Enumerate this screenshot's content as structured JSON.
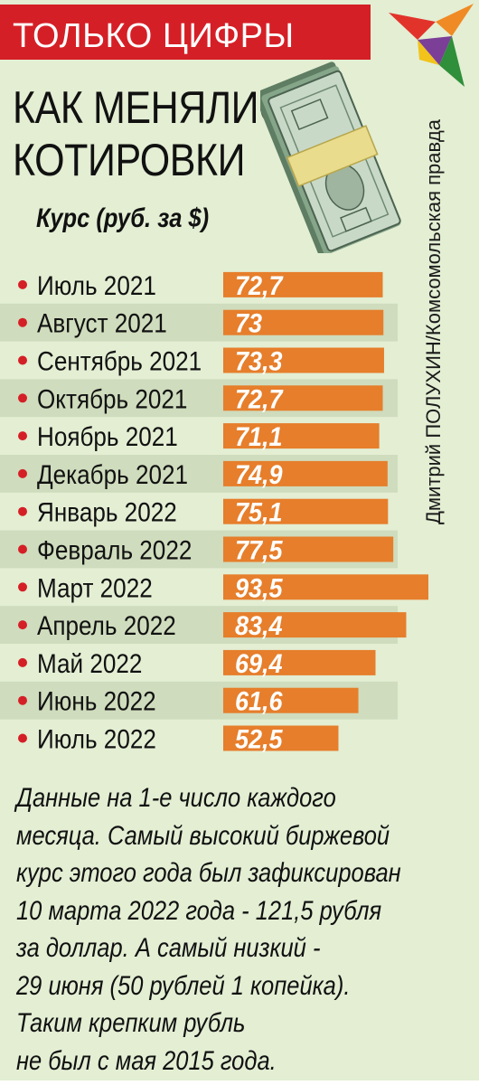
{
  "rubric": "ТОЛЬКО ЦИФРЫ",
  "headline": [
    "КАК МЕНЯЛИСЬ",
    "КОТИРОВКИ"
  ],
  "credit": "Дмитрий ПОЛУХИН/Комсомольская правда",
  "colors": {
    "panel": "#e3eed3",
    "stripe": "#cfdcbd",
    "bar": "#e67e2b",
    "rubric": "#d51f26",
    "bullet": "#d51f26"
  },
  "chart_data": {
    "type": "bar",
    "orientation": "horizontal",
    "title": "Курс (руб. за $)",
    "categories": [
      "Июль 2021",
      "Август 2021",
      "Сентябрь 2021",
      "Октябрь 2021",
      "Ноябрь 2021",
      "Декабрь 2021",
      "Январь 2022",
      "Февраль 2022",
      "Март 2022",
      "Апрель 2022",
      "Май 2022",
      "Июнь 2022",
      "Июль 2022"
    ],
    "values": [
      72.7,
      73,
      73.3,
      72.7,
      71.1,
      74.9,
      75.1,
      77.5,
      93.5,
      83.4,
      69.4,
      61.6,
      52.5
    ],
    "value_labels": [
      "72,7",
      "73",
      "73,3",
      "72,7",
      "71,1",
      "74,9",
      "75,1",
      "77,5",
      "93,5",
      "83,4",
      "69,4",
      "61,6",
      "52,5"
    ],
    "xlim": [
      0,
      93.5
    ],
    "grid": false,
    "legend": "none"
  },
  "footnote": [
    "Данные на 1-е число каждого",
    "месяца. Самый высокий биржевой",
    "курс этого года был зафиксирован",
    "10 марта 2022 года - 121,5 рубля",
    "за доллар. А самый низкий -",
    "29 июня (50 рублей 1 копейка).",
    "Таким крепким рубль",
    "не был с мая 2015 года."
  ]
}
